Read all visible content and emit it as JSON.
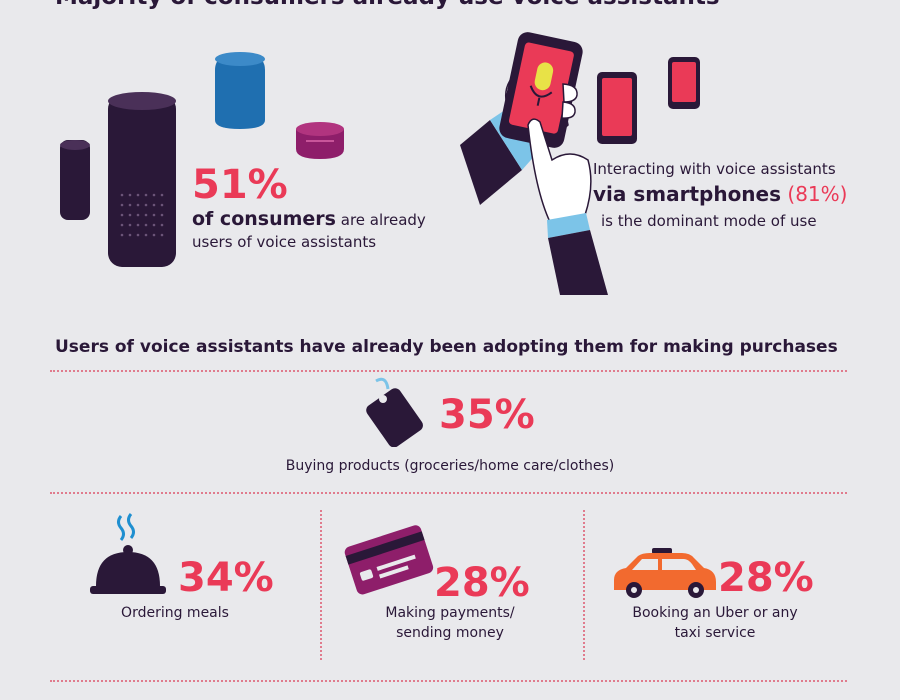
{
  "header": {
    "title": "Majority of consumers already use voice assistants"
  },
  "consumers": {
    "percent": "51%",
    "line1_bold": "of consumers",
    "line1_rest": " are already",
    "line2": "users of voice assistants"
  },
  "smartphones": {
    "line1": "Interacting with voice assistants",
    "line2_bold": "via smartphones",
    "line2_pct": "(81%)",
    "line3": "is the dominant mode of use"
  },
  "purchases": {
    "heading": "Users of voice assistants have already been adopting them for making purchases",
    "items": [
      {
        "percent": "35%",
        "label": "Buying products (groceries/home care/clothes)",
        "icon": "price-tag-icon"
      },
      {
        "percent": "34%",
        "label": "Ordering meals",
        "icon": "food-cloche-icon"
      },
      {
        "percent": "28%",
        "label": "Making payments/",
        "label2": "sending money",
        "icon": "credit-card-icon"
      },
      {
        "percent": "28%",
        "label": "Booking an Uber or any",
        "label2": "taxi service",
        "icon": "taxi-car-icon"
      }
    ]
  },
  "colors": {
    "accent": "#ea3a57",
    "dark": "#2a1838",
    "background": "#e9e9ec"
  }
}
